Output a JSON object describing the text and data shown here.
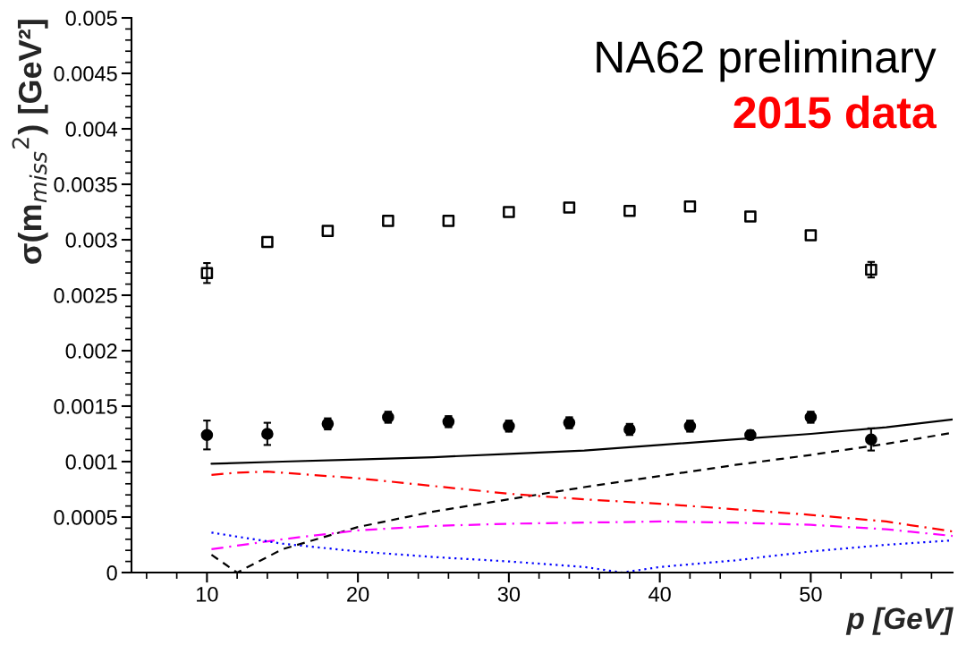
{
  "chart_data": {
    "type": "scatter",
    "xlabel": "p [GeV]",
    "ylabel": "σ(m$_{miss}$$^{2}$) [GeV²]",
    "annotations": [
      "NA62 preliminary",
      "2015 data"
    ],
    "x": [
      10,
      14,
      18,
      22,
      26,
      30,
      34,
      38,
      42,
      46,
      50,
      54
    ],
    "xlim": [
      5,
      59.4
    ],
    "xticks": [
      10,
      20,
      30,
      40,
      50
    ],
    "ylim": [
      0,
      0.005
    ],
    "yticks": [
      0,
      0.0005,
      0.001,
      0.0015,
      0.002,
      0.0025,
      0.003,
      0.0035,
      0.004,
      0.0045,
      0.005
    ],
    "grid": false,
    "legend": false,
    "series": [
      {
        "marker": "square",
        "color": "#000000",
        "values": [
          0.0027,
          0.00298,
          0.00308,
          0.00317,
          0.00317,
          0.00325,
          0.00329,
          0.00326,
          0.0033,
          0.00321,
          0.00304,
          0.00273
        ],
        "errors": [
          9e-05,
          null,
          null,
          null,
          null,
          null,
          null,
          null,
          null,
          null,
          null,
          7e-05
        ]
      },
      {
        "marker": "circle",
        "color": "#000000",
        "values": [
          0.00124,
          0.00125,
          0.00134,
          0.0014,
          0.00136,
          0.00132,
          0.00135,
          0.00129,
          0.00132,
          0.00124,
          0.0014,
          0.0012
        ],
        "errors": [
          0.00013,
          0.0001,
          5e-05,
          5e-05,
          5e-05,
          5e-05,
          5e-05,
          5e-05,
          5e-05,
          4e-05,
          5e-05,
          0.0001
        ]
      },
      {
        "type": "line",
        "line_style": "solid",
        "color": "#000000",
        "x": [
          10.3,
          15,
          20,
          25,
          30,
          35,
          40,
          45,
          50,
          55,
          59.4
        ],
        "values": [
          0.00098,
          0.001,
          0.00102,
          0.00104,
          0.00107,
          0.0011,
          0.00115,
          0.0012,
          0.00125,
          0.00131,
          0.00138
        ]
      },
      {
        "type": "line",
        "line_style": "dashed",
        "color": "#000000",
        "x": [
          10.3,
          12,
          15,
          20,
          25,
          30,
          35,
          40,
          45,
          50,
          55,
          59.4
        ],
        "values": [
          0.00016,
          0,
          0.00021,
          0.00041,
          0.00055,
          0.00066,
          0.00077,
          0.00087,
          0.00097,
          0.00106,
          0.00116,
          0.00126
        ]
      },
      {
        "type": "line",
        "line_style": "dashdot",
        "color": "#ff0000",
        "x": [
          10.3,
          12,
          14,
          20,
          25,
          30,
          35,
          40,
          45,
          50,
          55,
          59.4
        ],
        "values": [
          0.00088,
          0.0009,
          0.00091,
          0.00085,
          0.00078,
          0.00071,
          0.00066,
          0.00062,
          0.00057,
          0.00052,
          0.00046,
          0.00037
        ]
      },
      {
        "type": "line",
        "line_style": "dashdot",
        "color": "#ff00ff",
        "x": [
          10.3,
          15,
          20,
          25,
          30,
          35,
          40,
          45,
          50,
          55,
          59.4
        ],
        "values": [
          0.00021,
          0.0003,
          0.00038,
          0.00042,
          0.00044,
          0.00045,
          0.00046,
          0.00045,
          0.00043,
          0.00039,
          0.00033
        ]
      },
      {
        "type": "line",
        "line_style": "dotted",
        "color": "#0000ff",
        "x": [
          10.3,
          15,
          20,
          25,
          30,
          35,
          37.5,
          40,
          45,
          50,
          55,
          59.4
        ],
        "values": [
          0.00036,
          0.00026,
          0.00019,
          0.00014,
          0.0001,
          5e-05,
          0,
          5e-05,
          0.00011,
          0.00019,
          0.00025,
          0.00029
        ]
      }
    ]
  }
}
